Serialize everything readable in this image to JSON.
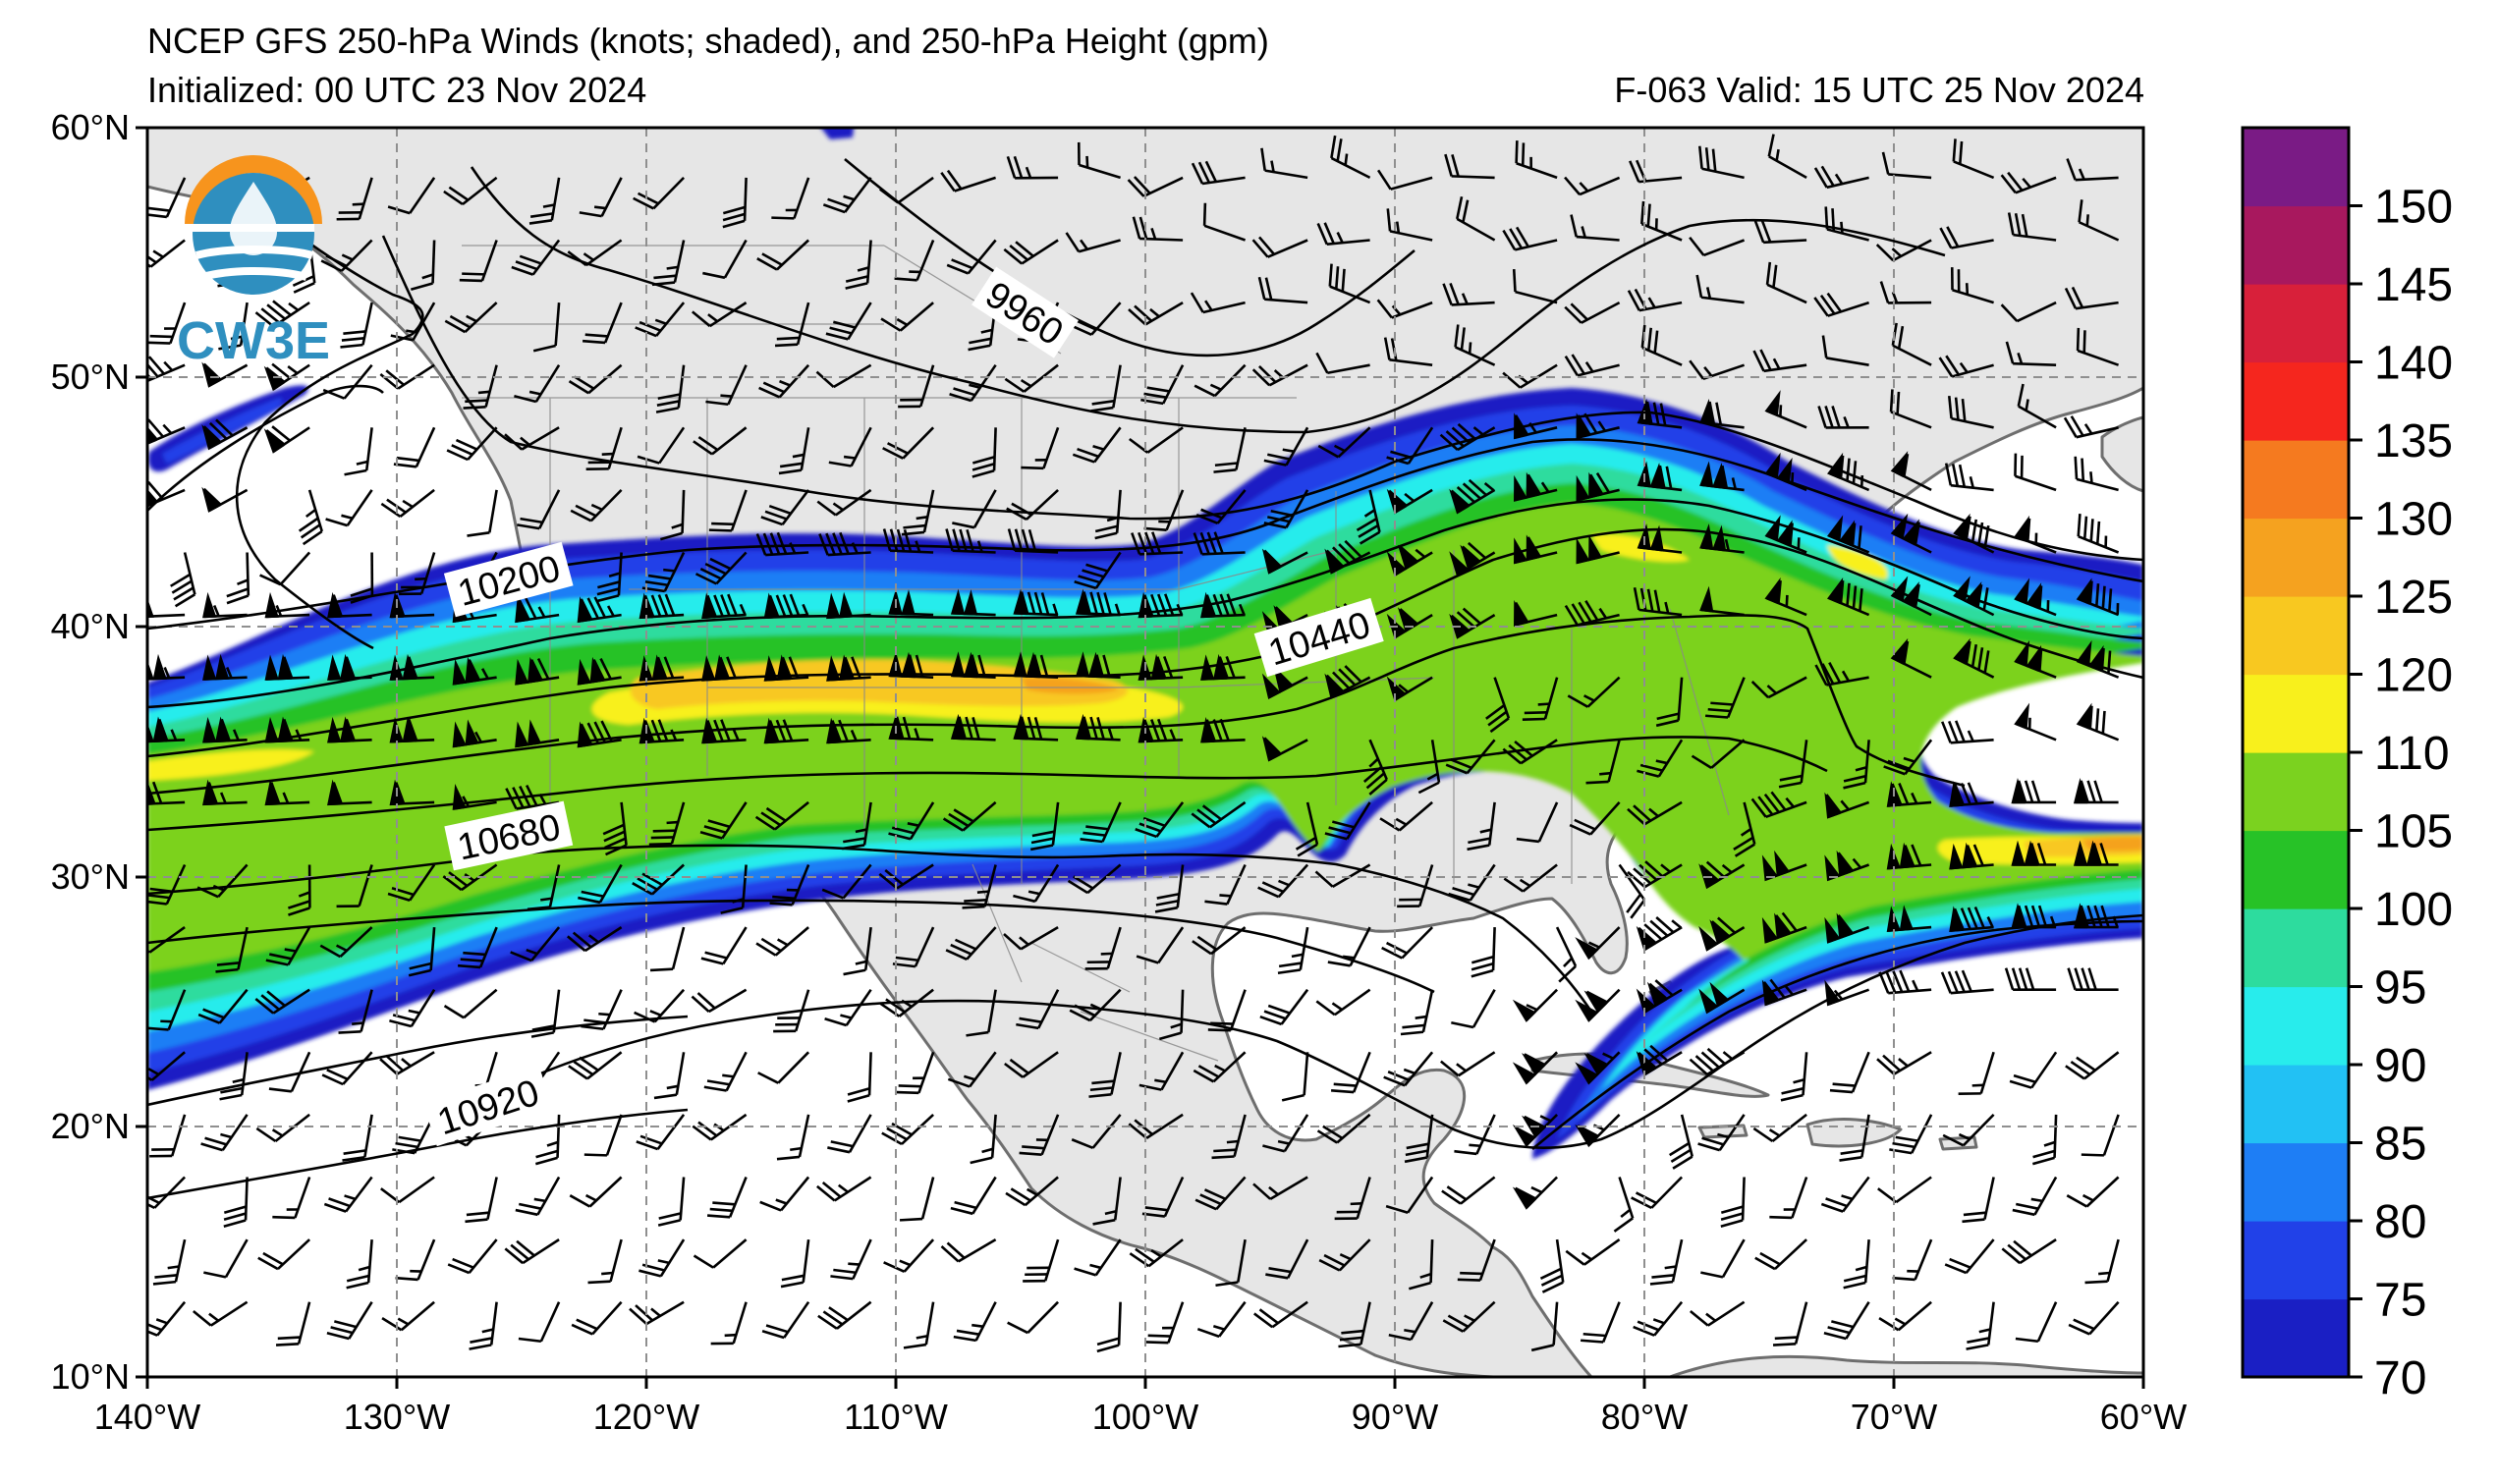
{
  "header": {
    "title": "NCEP GFS 250-hPa Winds (knots; shaded), and 250-hPa Height (gpm)",
    "initialized": "Initialized: 00 UTC 23 Nov 2024",
    "valid": "F-063  Valid: 15 UTC 25 Nov 2024"
  },
  "logo": {
    "text": "CW3E"
  },
  "map": {
    "extent": {
      "lon": [
        -140,
        -60
      ],
      "lat": [
        10,
        60
      ]
    },
    "lat_ticks": [
      {
        "lat": 60,
        "label": "60°N"
      },
      {
        "lat": 50,
        "label": "50°N"
      },
      {
        "lat": 40,
        "label": "40°N"
      },
      {
        "lat": 30,
        "label": "30°N"
      },
      {
        "lat": 20,
        "label": "20°N"
      },
      {
        "lat": 10,
        "label": "10°N"
      }
    ],
    "lon_ticks": [
      {
        "lon": -140,
        "label": "140°W"
      },
      {
        "lon": -130,
        "label": "130°W"
      },
      {
        "lon": -120,
        "label": "120°W"
      },
      {
        "lon": -110,
        "label": "110°W"
      },
      {
        "lon": -100,
        "label": "100°W"
      },
      {
        "lon": -90,
        "label": "90°W"
      },
      {
        "lon": -80,
        "label": "80°W"
      },
      {
        "lon": -70,
        "label": "70°W"
      },
      {
        "lon": -60,
        "label": "60°W"
      }
    ],
    "land_color": "#e6e6e6",
    "contour_labels": [
      {
        "text": "9960",
        "lon": -105.0,
        "lat": 52.5,
        "rot": 33
      },
      {
        "text": "10200",
        "lon": -125.5,
        "lat": 41.8,
        "rot": -15
      },
      {
        "text": "10440",
        "lon": -94.0,
        "lat": 39.7,
        "rot": -17
      },
      {
        "text": "10680",
        "lon": -124.5,
        "lat": 31.8,
        "rot": -12
      },
      {
        "text": "10920",
        "lon": -126.5,
        "lat": 21.2,
        "rot": -18
      }
    ]
  },
  "colorbar": {
    "ticks": [
      "70",
      "75",
      "80",
      "85",
      "90",
      "95",
      "100",
      "105",
      "110",
      "120",
      "125",
      "130",
      "135",
      "140",
      "145",
      "150"
    ],
    "colors": [
      "#1a1fc4",
      "#2141e8",
      "#1e7ef5",
      "#22c1f4",
      "#28ecec",
      "#2ddc9e",
      "#27c227",
      "#7bd21f",
      "#f8f01c",
      "#f8c820",
      "#f5a21f",
      "#f57a1f",
      "#f5261e",
      "#d8203a",
      "#a8185e",
      "#7a1b85"
    ]
  },
  "wind_field": {
    "units": "knots",
    "jets": [
      {
        "name": "northern",
        "axis": [
          [
            -140,
            36.3
          ],
          [
            -128,
            36.8
          ],
          [
            -120,
            38.0
          ],
          [
            -110,
            38.6
          ],
          [
            -100,
            38.2
          ],
          [
            -95,
            38.4
          ],
          [
            -90,
            41.0
          ],
          [
            -85,
            44.0
          ],
          [
            -80,
            45.2
          ],
          [
            -75,
            44.6
          ],
          [
            -70,
            42.5
          ],
          [
            -65,
            40.0
          ],
          [
            -60,
            38.0
          ]
        ],
        "peak_kt": 120
      },
      {
        "name": "southern",
        "axis": [
          [
            -84,
            21.0
          ],
          [
            -80,
            25.0
          ],
          [
            -75,
            28.0
          ],
          [
            -70,
            29.8
          ],
          [
            -65,
            30.2
          ],
          [
            -60,
            30.2
          ]
        ],
        "peak_kt": 120
      },
      {
        "name": "pacific",
        "axis": [
          [
            -140,
            46.3
          ],
          [
            -136,
            48.0
          ],
          [
            -133,
            50.0
          ]
        ],
        "peak_kt": 80
      }
    ]
  }
}
